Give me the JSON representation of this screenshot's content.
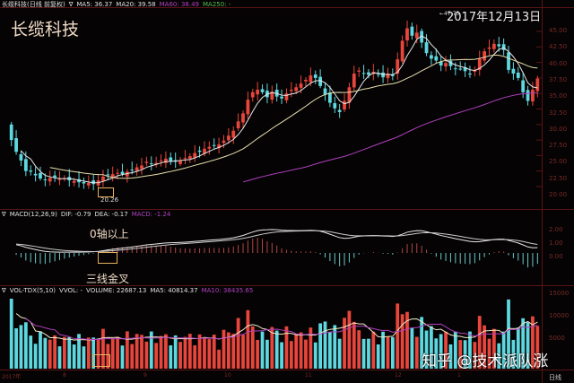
{
  "price_pane": {
    "header": {
      "name": "长缆科技(日线 前复权)",
      "toggle": "∇",
      "ma5": "MA5: 36.37",
      "ma20": "MA20: 39.58",
      "ma60": "MA60: 38.49",
      "ma250": "MA250: -"
    },
    "stock_title": "长缆科技",
    "date_title": "2017年12月13日",
    "peak_label": "←47.75",
    "low_label": "20.26",
    "y_ticks": [
      "45.00",
      "42.50",
      "40.00",
      "37.50",
      "35.00",
      "32.50",
      "30.00",
      "27.50",
      "25.00",
      "22.50",
      "20.00"
    ]
  },
  "macd_pane": {
    "header": {
      "toggle": "∇",
      "name": "MACD(12,26,9)",
      "dif": "DIF: -0.79",
      "dea": "DEA: -0.17",
      "macd": "MACD: -1.24"
    },
    "annotation_top": "0轴以上",
    "annotation_bottom": "三线金叉",
    "y_ticks": [
      "2.00",
      "1.00",
      "0.00"
    ]
  },
  "volume_pane": {
    "header": {
      "toggle": "∇",
      "name": "VOL-TDX(5,10)",
      "vvol": "VVOL: -",
      "volume": "VOLUME: 22687.13",
      "ma5": "MA5: 40814.37",
      "ma10": "MA10: 38435.65"
    },
    "y_ticks": [
      "15000",
      "10000",
      "5000"
    ]
  },
  "x_axis": {
    "labels": [
      "2017年",
      "8",
      "9",
      "10",
      "11",
      "12",
      "1"
    ],
    "period": "日线"
  },
  "watermark": "知乎 @技术派队涨",
  "colors": {
    "up": "#e8463c",
    "down": "#5ed8e0",
    "ma5": "#e8e8e8",
    "ma20": "#e8e0b0",
    "ma60": "#b040c0",
    "grid": "#5a1414",
    "annotation_box": "#e8b060"
  },
  "chart_data": [
    {
      "type": "candlestick",
      "title": "长缆科技(日线 前复权)",
      "ylim": [
        19.5,
        47.75
      ],
      "y_ticks": [
        20,
        22.5,
        25,
        27.5,
        30,
        32.5,
        35,
        37.5,
        40,
        42.5,
        45
      ],
      "x_labels": [
        "2017年",
        "8",
        "9",
        "10",
        "11",
        "12",
        "1"
      ],
      "closes": [
        27.5,
        25.6,
        24.2,
        22.5,
        22.4,
        21.8,
        21.3,
        21.0,
        21.4,
        21.5,
        21.2,
        21.3,
        21.0,
        20.9,
        20.7,
        20.5,
        20.6,
        20.4,
        21.0,
        21.6,
        21.9,
        22.0,
        22.2,
        22.0,
        22.4,
        22.6,
        23.1,
        23.4,
        24.0,
        23.6,
        23.8,
        24.2,
        24.5,
        24.1,
        24.0,
        24.2,
        24.6,
        24.9,
        25.4,
        25.6,
        26.1,
        26.4,
        26.6,
        26.8,
        27.4,
        28.2,
        29.0,
        30.5,
        31.8,
        34.0,
        35.2,
        35.6,
        35.2,
        34.4,
        35.3,
        34.5,
        34.2,
        35.0,
        35.6,
        36.0,
        36.6,
        37.2,
        37.9,
        37.5,
        36.2,
        34.8,
        33.5,
        32.6,
        32.0,
        33.8,
        36.0,
        38.2,
        38.7,
        38.2,
        38.0,
        38.5,
        38.0,
        37.6,
        38.2,
        37.8,
        40.5,
        43.5,
        45.5,
        44.3,
        44.8,
        43.2,
        41.5,
        40.6,
        40.3,
        39.5,
        39.9,
        39.4,
        38.9,
        39.0,
        38.6,
        38.2,
        38.8,
        40.6,
        41.8,
        42.4,
        43.0,
        42.6,
        42.0,
        38.8,
        38.2,
        37.5,
        35.2,
        33.8,
        35.6,
        37.4
      ],
      "ma_lines": [
        "MA5",
        "MA20",
        "MA60"
      ],
      "ma_values_latest": {
        "MA5": 36.37,
        "MA20": 39.58,
        "MA60": 38.49
      },
      "annotations": [
        {
          "text": "47.75",
          "type": "peak"
        },
        {
          "text": "20.26",
          "type": "low"
        },
        {
          "text": "2017年12月13日",
          "type": "date"
        }
      ]
    },
    {
      "type": "bar+line",
      "title": "MACD(12,26,9)",
      "y_ticks": [
        0.0,
        1.0,
        2.0
      ],
      "latest": {
        "DIF": -0.79,
        "DEA": -0.17,
        "MACD": -1.24
      },
      "annotations": [
        "0轴以上",
        "三线金叉"
      ]
    },
    {
      "type": "bar+line",
      "title": "VOL-TDX(5,10)",
      "y_ticks": [
        5000,
        10000,
        15000
      ],
      "latest": {
        "VOLUME": 22687.13,
        "MA5": 40814.37,
        "MA10": 38435.65
      }
    }
  ]
}
